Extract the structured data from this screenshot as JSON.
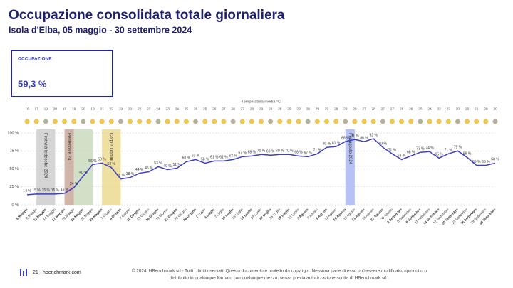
{
  "header": {
    "title": "Occupazione consolidata totale giornaliera",
    "subtitle": "Isola d'Elba, 05 maggio - 30 settembre 2024"
  },
  "kpi": {
    "label": "OCCUPAZIONE",
    "value": "59,3 %"
  },
  "chart_data": {
    "type": "line",
    "temperature_label": "Temperatura media °C",
    "categories": [
      "5 Maggio",
      "8 Maggio",
      "11 Maggio",
      "14 Maggio",
      "17 Maggio",
      "20 Maggio",
      "23 Maggio",
      "26 Maggio",
      "29 Maggio",
      "1 Giugno",
      "4 Giugno",
      "7 Giugno",
      "10 Giugno",
      "13 Giugno",
      "16 Giugno",
      "19 Giugno",
      "22 Giugno",
      "25 Giugno",
      "28 Giugno",
      "1 Luglio",
      "4 Luglio",
      "7 Luglio",
      "10 Luglio",
      "13 Luglio",
      "16 Luglio",
      "19 Luglio",
      "22 Luglio",
      "25 Luglio",
      "28 Luglio",
      "31 Luglio",
      "3 Agosto",
      "6 Agosto",
      "9 Agosto",
      "12 Agosto",
      "15 Agosto",
      "18 Agosto",
      "21 Agosto",
      "24 Agosto",
      "27 Agosto",
      "30 Agosto",
      "2 Settembre",
      "5 Settembre",
      "8 Settembre",
      "11 Settembre",
      "14 Settembre",
      "17 Settembre",
      "20 Settembre",
      "23 Settembre",
      "26 Settembre",
      "29 Settembre",
      "30 Settembre"
    ],
    "temperatures": [
      16,
      17,
      19,
      20,
      18,
      19,
      20,
      19,
      21,
      22,
      19,
      20,
      22,
      23,
      24,
      23,
      24,
      25,
      26,
      25,
      26,
      27,
      28,
      27,
      28,
      29,
      29,
      28,
      29,
      29,
      28,
      29,
      29,
      28,
      29,
      29,
      27,
      28,
      27,
      27,
      26,
      26,
      25,
      24,
      22,
      22,
      20,
      20,
      21,
      20,
      20
    ],
    "series": [
      {
        "name": "Occupazione",
        "color": "#3b3fc4",
        "values": [
          14,
          15,
          15,
          15,
          16,
          24,
          40,
          56,
          58,
          52,
          36,
          38,
          44,
          46,
          53,
          49,
          51,
          60,
          63,
          58,
          61,
          61,
          63,
          67,
          68,
          70,
          69,
          70,
          70,
          68,
          67,
          71,
          80,
          81,
          88,
          91,
          88,
          92,
          80,
          71,
          63,
          68,
          73,
          74,
          65,
          71,
          75,
          66,
          55,
          55,
          58
        ],
        "value_labels": [
          "14 %",
          "15 %",
          "15 %",
          "15 %",
          "16 %",
          "24 %",
          "40 %",
          "56 %",
          "58 %",
          "52 %",
          "36 %",
          "38 %",
          "44 %",
          "46 %",
          "53 %",
          "49 %",
          "51 %",
          "60 %",
          "63 %",
          "58 %",
          "61 %",
          "61 %",
          "63 %",
          "67 %",
          "68 %",
          "70 %",
          "69 %",
          "70 %",
          "70 %",
          "68 %",
          "67 %",
          "71 %",
          "80 %",
          "81 %",
          "88 %",
          "91 %",
          "88 %",
          "92 %",
          "80 %",
          "71 %",
          "63 %",
          "68 %",
          "73 %",
          "74 %",
          "65 %",
          "71 %",
          "75 %",
          "66 %",
          "55 %",
          "55 %",
          "58 %"
        ]
      }
    ],
    "ylim": [
      0,
      100
    ],
    "yticks": [
      {
        "value": 0,
        "label": "0 %"
      },
      {
        "value": 25,
        "label": "25 %"
      },
      {
        "value": 50,
        "label": "50 %"
      },
      {
        "value": 75,
        "label": "75 %"
      },
      {
        "value": 100,
        "label": "100 %"
      }
    ],
    "grid": true,
    "events": [
      {
        "name": "Festività tedesche 2024",
        "from": "8 Maggio",
        "to": "14 Maggio",
        "color": "#bfbfbf"
      },
      {
        "name": "Pentecoste 24",
        "from": "17 Maggio",
        "to": "20 Maggio",
        "color": "#b98c7a"
      },
      {
        "from": "20 Maggio",
        "to": "26 Maggio",
        "color": "#b9cfa8"
      },
      {
        "name": "Corpus Domini",
        "from": "29 Maggio",
        "to": "4 Giugno",
        "color": "#e6cf6e"
      },
      {
        "name": "Ferragosto 2024",
        "from": "15 Agosto",
        "to": "18 Agosto",
        "color": "#8f9ff0"
      }
    ]
  },
  "footer": {
    "page": "21 - hbenchmark.com",
    "copyright": [
      "© 2024, HBenchmark srl - Tutti i diritti riservati. Questo documento è protetto da copyright. Nessuna parte di esso può essere modificato, riprodotto o",
      "distribuito in qualunque forma o con qualunque mezzo, senza previa autorizzazione scritta di HBenchmark srl ."
    ]
  }
}
